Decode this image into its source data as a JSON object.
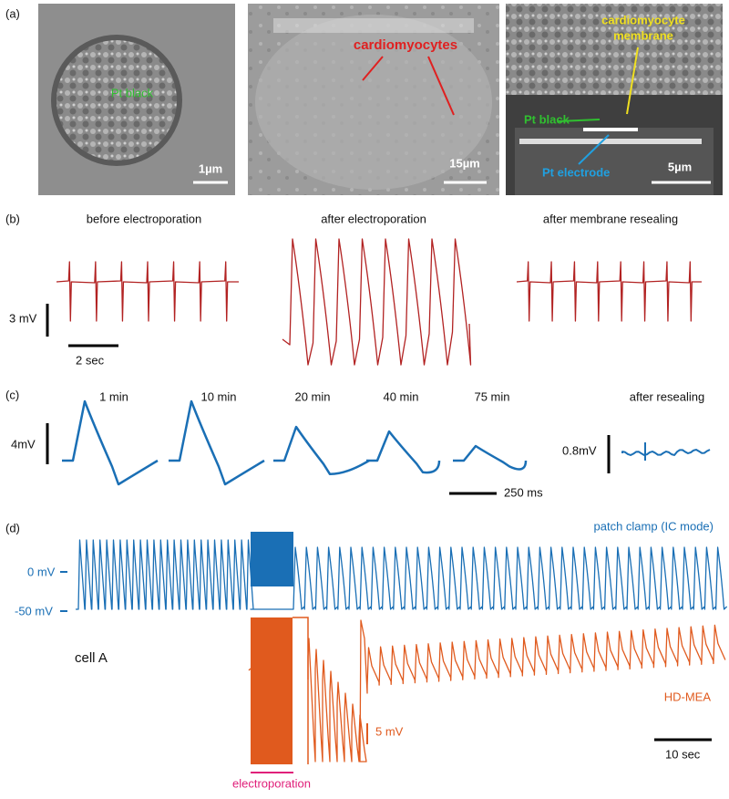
{
  "panel_a": {
    "label": "(a)",
    "images": [
      {
        "labels": [
          "Pt black"
        ],
        "scale_bar": "1µm"
      },
      {
        "labels": [
          "cardiomyocytes"
        ],
        "scale_bar": "15µm"
      },
      {
        "labels": [
          "cardiomyocyte",
          "membrane",
          "Pt black",
          "Pt electrode"
        ],
        "scale_bar": "5µm"
      }
    ]
  },
  "panel_b": {
    "label": "(b)",
    "titles": [
      "before electroporation",
      "after electroporation",
      "after membrane resealing"
    ],
    "scale_y": "3 mV",
    "scale_x": "2 sec"
  },
  "panel_c": {
    "label": "(c)",
    "titles": [
      "1 min",
      "10 min",
      "20 min",
      "40 min",
      "75 min",
      "after resealing"
    ],
    "scale_y": "4mV",
    "scale_y2": "0.8mV",
    "scale_x": "250 ms"
  },
  "panel_d": {
    "label": "(d)",
    "patch_label": "patch clamp (IC mode)",
    "level_0": "0 mV",
    "level_50": "-50 mV",
    "cell": "cell A",
    "mea_label": "HD-MEA",
    "scale_y": "5 mV",
    "scale_x": "10 sec",
    "stimulus": "electroporation"
  }
}
